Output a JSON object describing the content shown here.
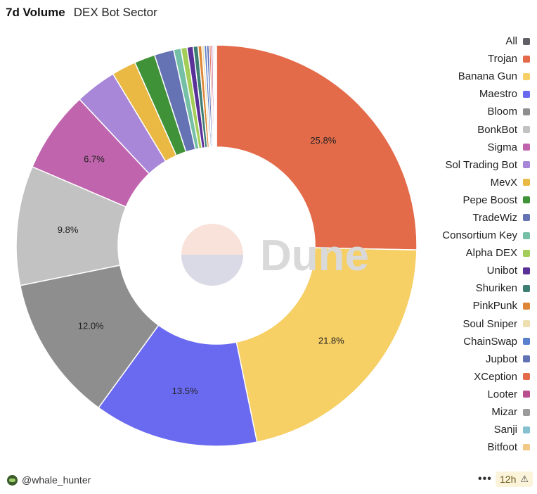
{
  "header": {
    "title": "7d Volume",
    "subtitle": "DEX Bot Sector"
  },
  "chart_data": {
    "type": "pie",
    "style": "donut",
    "title": "7d Volume",
    "subtitle": "DEX Bot Sector",
    "legend_position": "right",
    "slices": [
      {
        "name": "Trojan",
        "value": 25.8,
        "color": "#e36b4a",
        "label": "25.8%"
      },
      {
        "name": "Banana Gun",
        "value": 21.8,
        "color": "#f6cf65",
        "label": "21.8%"
      },
      {
        "name": "Maestro",
        "value": 13.5,
        "color": "#6a6af0",
        "label": "13.5%"
      },
      {
        "name": "Bloom",
        "value": 12.0,
        "color": "#8e8e8e",
        "label": "12.0%"
      },
      {
        "name": "BonkBot",
        "value": 9.8,
        "color": "#c2c2c2",
        "label": "9.8%"
      },
      {
        "name": "Sigma",
        "value": 6.7,
        "color": "#c064ad",
        "label": "6.7%"
      },
      {
        "name": "Sol Trading Bot",
        "value": 3.4,
        "color": "#a887d8",
        "label": ""
      },
      {
        "name": "MevX",
        "value": 2.0,
        "color": "#e9b944",
        "label": ""
      },
      {
        "name": "Pepe Boost",
        "value": 1.7,
        "color": "#3f9237",
        "label": ""
      },
      {
        "name": "TradeWiz",
        "value": 1.6,
        "color": "#6573b5",
        "label": ""
      },
      {
        "name": "Consortium Key",
        "value": 0.6,
        "color": "#74bfa6",
        "label": ""
      },
      {
        "name": "Alpha DEX",
        "value": 0.5,
        "color": "#a3cd59",
        "label": ""
      },
      {
        "name": "Unibot",
        "value": 0.5,
        "color": "#5a3198",
        "label": ""
      },
      {
        "name": "Shuriken",
        "value": 0.4,
        "color": "#3f7f73",
        "label": ""
      },
      {
        "name": "PinkPunk",
        "value": 0.3,
        "color": "#dd8635",
        "label": ""
      },
      {
        "name": "Soul Sniper",
        "value": 0.2,
        "color": "#eedfb0",
        "label": ""
      },
      {
        "name": "ChainSwap",
        "value": 0.2,
        "color": "#5a7fcd",
        "label": ""
      },
      {
        "name": "Jupbot",
        "value": 0.2,
        "color": "#6273b5",
        "label": ""
      },
      {
        "name": "XCeption",
        "value": 0.15,
        "color": "#e36b4a",
        "label": ""
      },
      {
        "name": "Looter",
        "value": 0.15,
        "color": "#b8508f",
        "label": ""
      },
      {
        "name": "Mizar",
        "value": 0.1,
        "color": "#9b9b9b",
        "label": ""
      },
      {
        "name": "Sanji",
        "value": 0.1,
        "color": "#86c1d2",
        "label": ""
      },
      {
        "name": "Bitfoot",
        "value": 0.1,
        "color": "#f2c887",
        "label": ""
      }
    ]
  },
  "legend": {
    "items": [
      {
        "label": "All",
        "color": "#5f5f66"
      },
      {
        "label": "Trojan",
        "color": "#e36b4a"
      },
      {
        "label": "Banana Gun",
        "color": "#f6cf65"
      },
      {
        "label": "Maestro",
        "color": "#6a6af0"
      },
      {
        "label": "Bloom",
        "color": "#8e8e8e"
      },
      {
        "label": "BonkBot",
        "color": "#c2c2c2"
      },
      {
        "label": "Sigma",
        "color": "#c064ad"
      },
      {
        "label": "Sol Trading Bot",
        "color": "#a887d8"
      },
      {
        "label": "MevX",
        "color": "#e9b944"
      },
      {
        "label": "Pepe Boost",
        "color": "#3f9237"
      },
      {
        "label": "TradeWiz",
        "color": "#6573b5"
      },
      {
        "label": "Consortium Key",
        "color": "#74bfa6"
      },
      {
        "label": "Alpha DEX",
        "color": "#a3cd59"
      },
      {
        "label": "Unibot",
        "color": "#5a3198"
      },
      {
        "label": "Shuriken",
        "color": "#3f7f73"
      },
      {
        "label": "PinkPunk",
        "color": "#dd8635"
      },
      {
        "label": "Soul Sniper",
        "color": "#eedfb0"
      },
      {
        "label": "ChainSwap",
        "color": "#5a7fcd"
      },
      {
        "label": "Jupbot",
        "color": "#6273b5"
      },
      {
        "label": "XCeption",
        "color": "#e36b4a"
      },
      {
        "label": "Looter",
        "color": "#b8508f"
      },
      {
        "label": "Mizar",
        "color": "#9b9b9b"
      },
      {
        "label": "Sanji",
        "color": "#86c1d2"
      },
      {
        "label": "Bitfoot",
        "color": "#f2c887"
      }
    ]
  },
  "watermark": {
    "text": "Dune",
    "color": "#d9d9d9"
  },
  "footer": {
    "author": "@whale_hunter",
    "menu": "•••",
    "age": "12h",
    "warn_icon": "⚠"
  }
}
